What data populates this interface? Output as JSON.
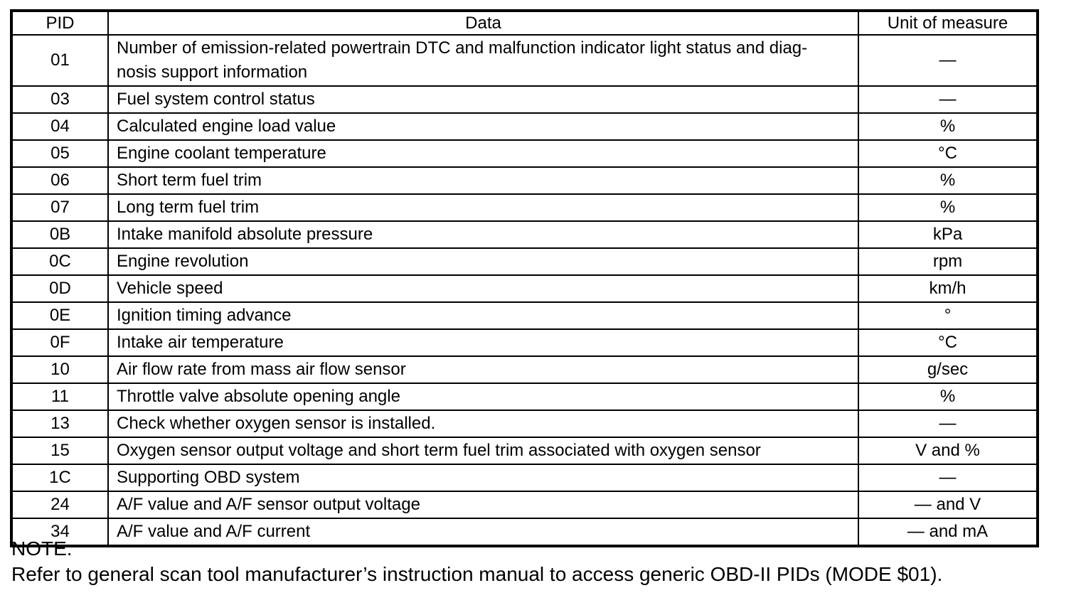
{
  "colors": {
    "background": "#ffffff",
    "text": "#000000",
    "border": "#000000"
  },
  "table": {
    "headers": [
      "PID",
      "Data",
      "Unit of measure"
    ],
    "rows": [
      {
        "pid": "01",
        "data": "Number of emission-related powertrain DTC and malfunction indicator light status and diag-\nnosis support information",
        "unit": "—"
      },
      {
        "pid": "03",
        "data": "Fuel system control status",
        "unit": "—"
      },
      {
        "pid": "04",
        "data": "Calculated engine load value",
        "unit": "%"
      },
      {
        "pid": "05",
        "data": "Engine coolant temperature",
        "unit": "°C"
      },
      {
        "pid": "06",
        "data": "Short term fuel trim",
        "unit": "%"
      },
      {
        "pid": "07",
        "data": "Long term fuel trim",
        "unit": "%"
      },
      {
        "pid": "0B",
        "data": "Intake manifold absolute pressure",
        "unit": "kPa"
      },
      {
        "pid": "0C",
        "data": "Engine revolution",
        "unit": "rpm"
      },
      {
        "pid": "0D",
        "data": "Vehicle speed",
        "unit": "km/h"
      },
      {
        "pid": "0E",
        "data": "Ignition timing advance",
        "unit": "°"
      },
      {
        "pid": "0F",
        "data": "Intake air temperature",
        "unit": "°C"
      },
      {
        "pid": "10",
        "data": "Air flow rate from mass air flow sensor",
        "unit": "g/sec"
      },
      {
        "pid": "11",
        "data": "Throttle valve absolute opening angle",
        "unit": "%"
      },
      {
        "pid": "13",
        "data": "Check whether oxygen sensor is installed.",
        "unit": "—"
      },
      {
        "pid": "15",
        "data": "Oxygen sensor output voltage and short term fuel trim associated with oxygen sensor",
        "unit": "V and %"
      },
      {
        "pid": "1C",
        "data": "Supporting OBD system",
        "unit": "—"
      },
      {
        "pid": "24",
        "data": "A/F value and A/F sensor output voltage",
        "unit": "— and V"
      },
      {
        "pid": "34",
        "data": "A/F value and A/F current",
        "unit": "— and mA"
      }
    ]
  },
  "note": {
    "title": "NOTE:",
    "text": "Refer to general scan tool manufacturer’s instruction manual to access generic OBD-II PIDs (MODE $01)."
  }
}
